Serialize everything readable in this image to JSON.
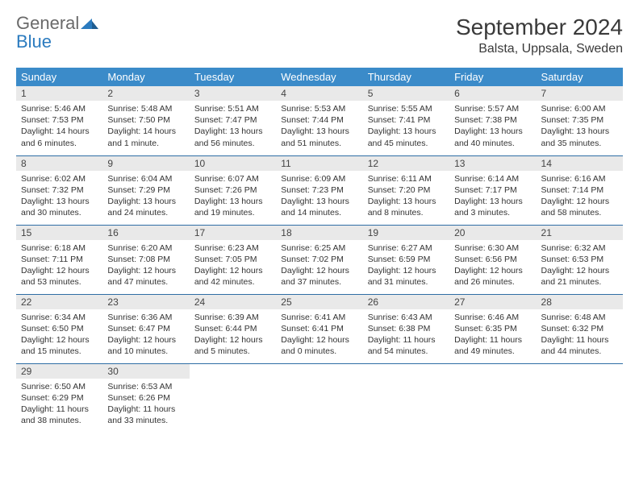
{
  "logo": {
    "word1": "General",
    "word2": "Blue"
  },
  "title": "September 2024",
  "location": "Balsta, Uppsala, Sweden",
  "colors": {
    "header_bg": "#3b8bc9",
    "header_text": "#ffffff",
    "daynum_bg": "#e9e9e9",
    "row_border": "#2f6ea5",
    "logo_gray": "#6a6a6a",
    "logo_blue": "#2b7bbf"
  },
  "typography": {
    "title_fontsize": 28,
    "location_fontsize": 16,
    "dayheader_fontsize": 13,
    "daynum_fontsize": 12,
    "body_fontsize": 10.5
  },
  "day_headers": [
    "Sunday",
    "Monday",
    "Tuesday",
    "Wednesday",
    "Thursday",
    "Friday",
    "Saturday"
  ],
  "weeks": [
    [
      {
        "n": "1",
        "sunrise": "5:46 AM",
        "sunset": "7:53 PM",
        "daylight": "14 hours and 6 minutes."
      },
      {
        "n": "2",
        "sunrise": "5:48 AM",
        "sunset": "7:50 PM",
        "daylight": "14 hours and 1 minute."
      },
      {
        "n": "3",
        "sunrise": "5:51 AM",
        "sunset": "7:47 PM",
        "daylight": "13 hours and 56 minutes."
      },
      {
        "n": "4",
        "sunrise": "5:53 AM",
        "sunset": "7:44 PM",
        "daylight": "13 hours and 51 minutes."
      },
      {
        "n": "5",
        "sunrise": "5:55 AM",
        "sunset": "7:41 PM",
        "daylight": "13 hours and 45 minutes."
      },
      {
        "n": "6",
        "sunrise": "5:57 AM",
        "sunset": "7:38 PM",
        "daylight": "13 hours and 40 minutes."
      },
      {
        "n": "7",
        "sunrise": "6:00 AM",
        "sunset": "7:35 PM",
        "daylight": "13 hours and 35 minutes."
      }
    ],
    [
      {
        "n": "8",
        "sunrise": "6:02 AM",
        "sunset": "7:32 PM",
        "daylight": "13 hours and 30 minutes."
      },
      {
        "n": "9",
        "sunrise": "6:04 AM",
        "sunset": "7:29 PM",
        "daylight": "13 hours and 24 minutes."
      },
      {
        "n": "10",
        "sunrise": "6:07 AM",
        "sunset": "7:26 PM",
        "daylight": "13 hours and 19 minutes."
      },
      {
        "n": "11",
        "sunrise": "6:09 AM",
        "sunset": "7:23 PM",
        "daylight": "13 hours and 14 minutes."
      },
      {
        "n": "12",
        "sunrise": "6:11 AM",
        "sunset": "7:20 PM",
        "daylight": "13 hours and 8 minutes."
      },
      {
        "n": "13",
        "sunrise": "6:14 AM",
        "sunset": "7:17 PM",
        "daylight": "13 hours and 3 minutes."
      },
      {
        "n": "14",
        "sunrise": "6:16 AM",
        "sunset": "7:14 PM",
        "daylight": "12 hours and 58 minutes."
      }
    ],
    [
      {
        "n": "15",
        "sunrise": "6:18 AM",
        "sunset": "7:11 PM",
        "daylight": "12 hours and 53 minutes."
      },
      {
        "n": "16",
        "sunrise": "6:20 AM",
        "sunset": "7:08 PM",
        "daylight": "12 hours and 47 minutes."
      },
      {
        "n": "17",
        "sunrise": "6:23 AM",
        "sunset": "7:05 PM",
        "daylight": "12 hours and 42 minutes."
      },
      {
        "n": "18",
        "sunrise": "6:25 AM",
        "sunset": "7:02 PM",
        "daylight": "12 hours and 37 minutes."
      },
      {
        "n": "19",
        "sunrise": "6:27 AM",
        "sunset": "6:59 PM",
        "daylight": "12 hours and 31 minutes."
      },
      {
        "n": "20",
        "sunrise": "6:30 AM",
        "sunset": "6:56 PM",
        "daylight": "12 hours and 26 minutes."
      },
      {
        "n": "21",
        "sunrise": "6:32 AM",
        "sunset": "6:53 PM",
        "daylight": "12 hours and 21 minutes."
      }
    ],
    [
      {
        "n": "22",
        "sunrise": "6:34 AM",
        "sunset": "6:50 PM",
        "daylight": "12 hours and 15 minutes."
      },
      {
        "n": "23",
        "sunrise": "6:36 AM",
        "sunset": "6:47 PM",
        "daylight": "12 hours and 10 minutes."
      },
      {
        "n": "24",
        "sunrise": "6:39 AM",
        "sunset": "6:44 PM",
        "daylight": "12 hours and 5 minutes."
      },
      {
        "n": "25",
        "sunrise": "6:41 AM",
        "sunset": "6:41 PM",
        "daylight": "12 hours and 0 minutes."
      },
      {
        "n": "26",
        "sunrise": "6:43 AM",
        "sunset": "6:38 PM",
        "daylight": "11 hours and 54 minutes."
      },
      {
        "n": "27",
        "sunrise": "6:46 AM",
        "sunset": "6:35 PM",
        "daylight": "11 hours and 49 minutes."
      },
      {
        "n": "28",
        "sunrise": "6:48 AM",
        "sunset": "6:32 PM",
        "daylight": "11 hours and 44 minutes."
      }
    ],
    [
      {
        "n": "29",
        "sunrise": "6:50 AM",
        "sunset": "6:29 PM",
        "daylight": "11 hours and 38 minutes."
      },
      {
        "n": "30",
        "sunrise": "6:53 AM",
        "sunset": "6:26 PM",
        "daylight": "11 hours and 33 minutes."
      },
      null,
      null,
      null,
      null,
      null
    ]
  ]
}
